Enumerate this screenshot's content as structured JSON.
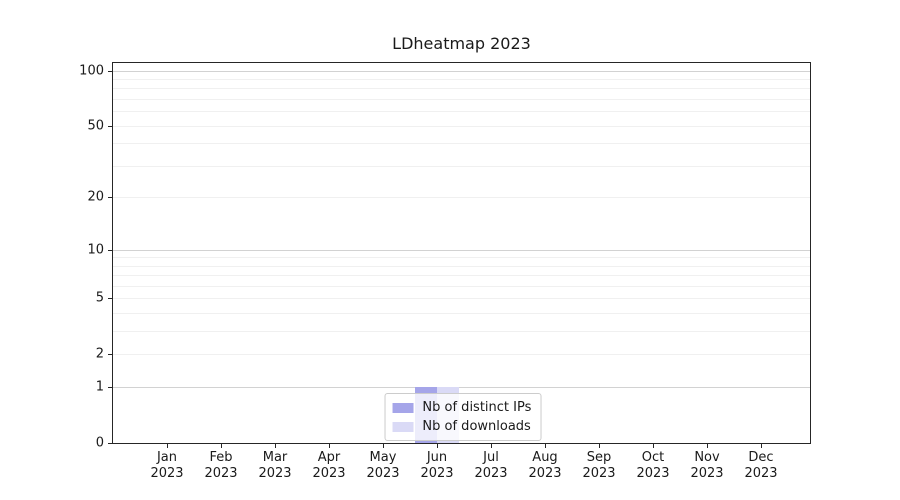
{
  "chart_data": {
    "type": "bar",
    "title": "LDheatmap 2023",
    "categories": [
      "Jan 2023",
      "Feb 2023",
      "Mar 2023",
      "Apr 2023",
      "May 2023",
      "Jun 2023",
      "Jul 2023",
      "Aug 2023",
      "Sep 2023",
      "Oct 2023",
      "Nov 2023",
      "Dec 2023"
    ],
    "series": [
      {
        "name": "Nb of distinct IPs",
        "color": "#a5a5e9",
        "values": [
          0,
          0,
          0,
          0,
          0,
          1,
          0,
          0,
          0,
          0,
          0,
          0
        ]
      },
      {
        "name": "Nb of downloads",
        "color": "#dadaf6",
        "values": [
          0,
          0,
          0,
          0,
          0,
          1,
          0,
          0,
          0,
          0,
          0,
          0
        ]
      }
    ],
    "xlabel": "",
    "ylabel": "",
    "y_scale": "log1p",
    "ylim": [
      0,
      110
    ],
    "y_ticks": [
      0,
      1,
      2,
      5,
      10,
      20,
      50,
      100
    ],
    "y_major_gridlines": [
      1,
      10,
      100
    ],
    "y_minor_gridlines": [
      2,
      3,
      4,
      5,
      6,
      7,
      8,
      9,
      20,
      30,
      40,
      50,
      60,
      70,
      80,
      90
    ],
    "grid": true,
    "legend": {
      "position": "lower center"
    }
  },
  "colors": {
    "spine": "#262626",
    "text": "#1a1a1a",
    "grid_major": "#d2d2d2",
    "grid_minor": "#f0f0f0",
    "legend_border": "#cccccc",
    "background": "#ffffff"
  }
}
